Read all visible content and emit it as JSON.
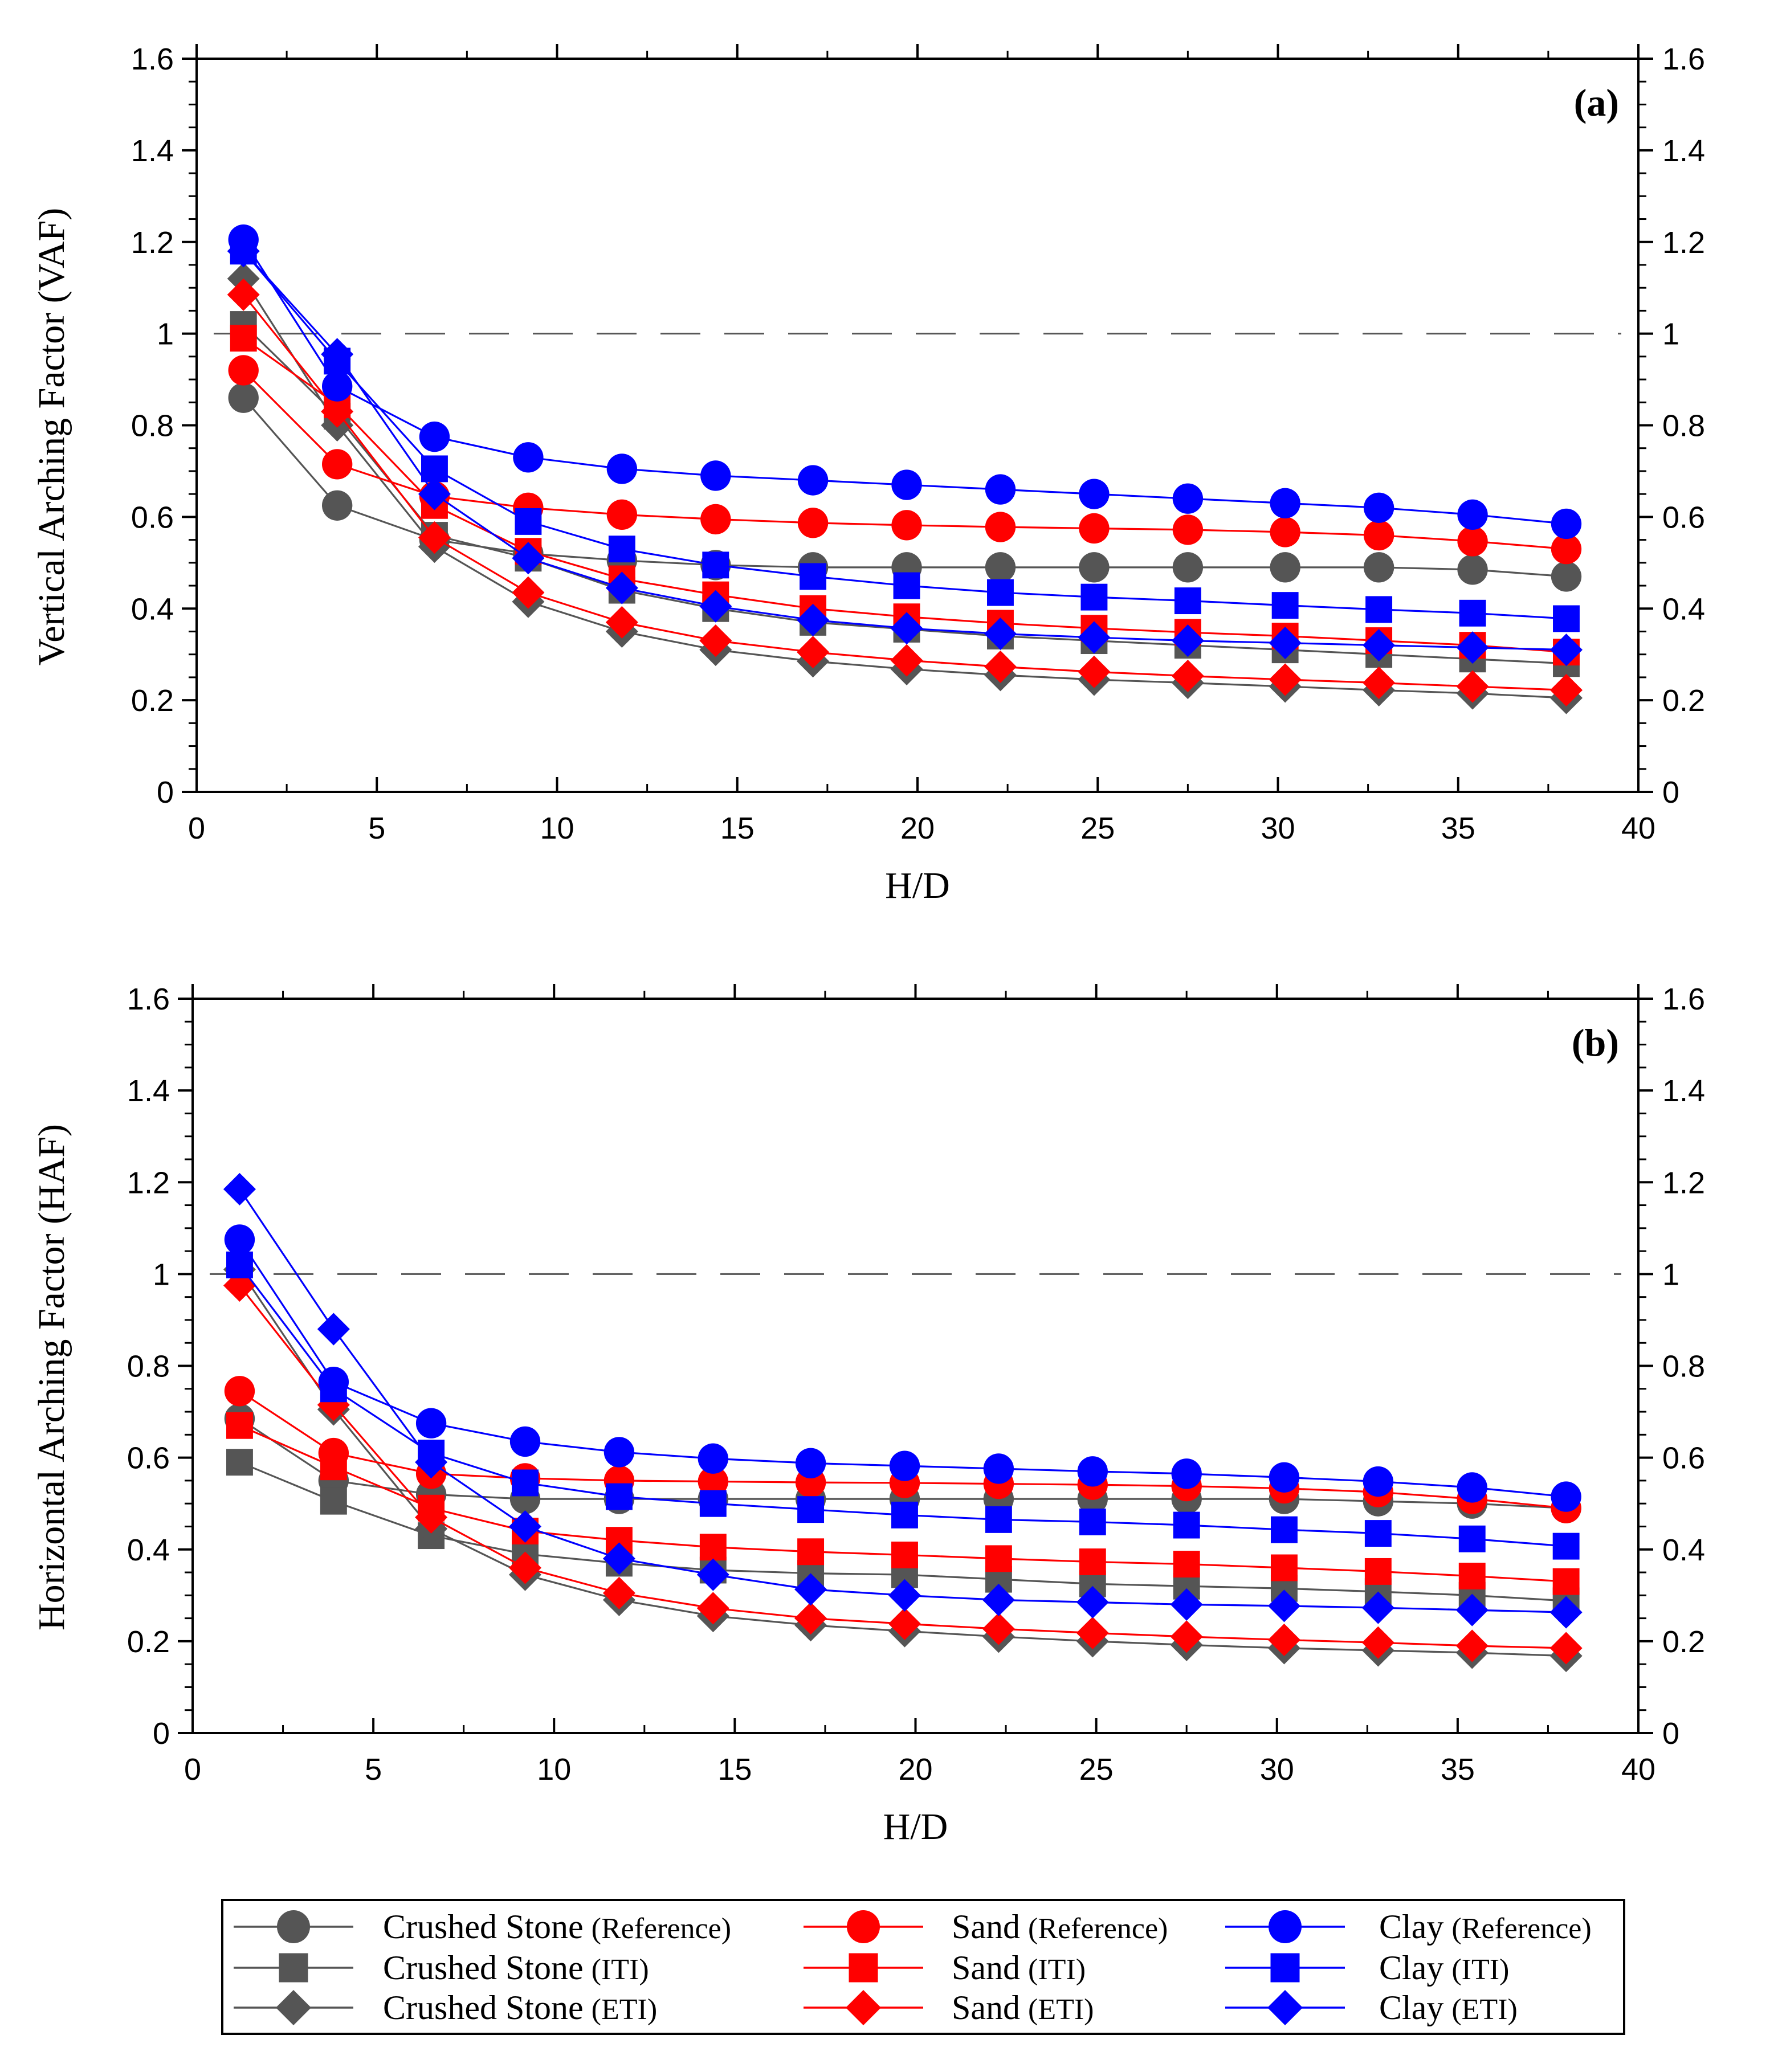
{
  "chart_data": [
    {
      "type": "line",
      "panel_label": "(a)",
      "xlabel": "H/D",
      "ylabel": "Vertical Arching Factor (VAF)",
      "xlim": [
        0,
        40
      ],
      "ylim": [
        0,
        1.6
      ],
      "xticks": [
        "0",
        "5",
        "10",
        "15",
        "20",
        "25",
        "30",
        "35",
        "40"
      ],
      "yticks": [
        "0",
        "0.2",
        "0.4",
        "0.6",
        "0.8",
        "1",
        "1.2",
        "1.4",
        "1.6"
      ],
      "reference_line": 1,
      "x": [
        1.3,
        3.9,
        6.6,
        9.2,
        11.8,
        14.4,
        17.1,
        19.7,
        22.3,
        24.9,
        27.5,
        30.2,
        32.8,
        35.4,
        38.0
      ],
      "series": [
        {
          "name": "Crushed Stone (Reference)",
          "values": [
            0.86,
            0.625,
            0.55,
            0.52,
            0.505,
            0.495,
            0.49,
            0.49,
            0.49,
            0.49,
            0.49,
            0.49,
            0.49,
            0.485,
            0.47
          ]
        },
        {
          "name": "Crushed Stone (ITI)",
          "values": [
            1.02,
            0.82,
            0.56,
            0.51,
            0.44,
            0.4,
            0.37,
            0.355,
            0.34,
            0.33,
            0.32,
            0.31,
            0.3,
            0.29,
            0.28
          ]
        },
        {
          "name": "Crushed Stone (ETI)",
          "values": [
            1.12,
            0.8,
            0.535,
            0.415,
            0.35,
            0.31,
            0.285,
            0.268,
            0.255,
            0.245,
            0.238,
            0.23,
            0.222,
            0.215,
            0.205
          ]
        },
        {
          "name": "Sand (Reference)",
          "values": [
            0.92,
            0.715,
            0.645,
            0.62,
            0.605,
            0.595,
            0.587,
            0.582,
            0.578,
            0.575,
            0.572,
            0.567,
            0.56,
            0.547,
            0.53
          ]
        },
        {
          "name": "Sand (ITI)",
          "values": [
            0.99,
            0.845,
            0.625,
            0.525,
            0.465,
            0.43,
            0.4,
            0.382,
            0.368,
            0.357,
            0.348,
            0.34,
            0.33,
            0.32,
            0.305
          ]
        },
        {
          "name": "Sand (ETI)",
          "values": [
            1.085,
            0.83,
            0.555,
            0.435,
            0.37,
            0.33,
            0.305,
            0.287,
            0.273,
            0.262,
            0.253,
            0.245,
            0.238,
            0.23,
            0.222
          ]
        },
        {
          "name": "Clay (Reference)",
          "values": [
            1.205,
            0.885,
            0.775,
            0.73,
            0.705,
            0.69,
            0.68,
            0.67,
            0.66,
            0.65,
            0.64,
            0.63,
            0.62,
            0.605,
            0.585
          ]
        },
        {
          "name": "Clay (ITI)",
          "values": [
            1.18,
            0.94,
            0.705,
            0.59,
            0.53,
            0.495,
            0.47,
            0.45,
            0.435,
            0.425,
            0.417,
            0.407,
            0.398,
            0.39,
            0.378
          ]
        },
        {
          "name": "Clay (ETI)",
          "values": [
            1.18,
            0.955,
            0.65,
            0.51,
            0.445,
            0.405,
            0.375,
            0.357,
            0.345,
            0.337,
            0.33,
            0.325,
            0.32,
            0.315,
            0.31
          ]
        }
      ]
    },
    {
      "type": "line",
      "panel_label": "(b)",
      "xlabel": "H/D",
      "ylabel": "Horizontal Arching Factor (HAF)",
      "xlim": [
        0,
        40
      ],
      "ylim": [
        0,
        1.6
      ],
      "xticks": [
        "0",
        "5",
        "10",
        "15",
        "20",
        "25",
        "30",
        "35",
        "40"
      ],
      "yticks": [
        "0",
        "0.2",
        "0.4",
        "0.6",
        "0.8",
        "1",
        "1.2",
        "1.4",
        "1.6"
      ],
      "reference_line": 1,
      "x": [
        1.3,
        3.9,
        6.6,
        9.2,
        11.8,
        14.4,
        17.1,
        19.7,
        22.3,
        24.9,
        27.5,
        30.2,
        32.8,
        35.4,
        38.0
      ],
      "series": [
        {
          "name": "Crushed Stone (Reference)",
          "values": [
            0.685,
            0.55,
            0.52,
            0.51,
            0.51,
            0.51,
            0.51,
            0.51,
            0.51,
            0.51,
            0.51,
            0.51,
            0.505,
            0.5,
            0.49
          ]
        },
        {
          "name": "Crushed Stone (ITI)",
          "values": [
            0.59,
            0.505,
            0.43,
            0.39,
            0.37,
            0.355,
            0.348,
            0.345,
            0.335,
            0.325,
            0.32,
            0.315,
            0.308,
            0.3,
            0.288
          ]
        },
        {
          "name": "Crushed Stone (ETI)",
          "values": [
            1.01,
            0.705,
            0.445,
            0.345,
            0.29,
            0.255,
            0.235,
            0.222,
            0.21,
            0.2,
            0.192,
            0.185,
            0.18,
            0.175,
            0.168
          ]
        },
        {
          "name": "Sand (Reference)",
          "values": [
            0.745,
            0.61,
            0.565,
            0.555,
            0.55,
            0.548,
            0.546,
            0.545,
            0.543,
            0.541,
            0.538,
            0.533,
            0.525,
            0.51,
            0.49
          ]
        },
        {
          "name": "Sand (ITI)",
          "values": [
            0.67,
            0.58,
            0.49,
            0.44,
            0.42,
            0.405,
            0.395,
            0.388,
            0.38,
            0.373,
            0.368,
            0.36,
            0.352,
            0.342,
            0.33
          ]
        },
        {
          "name": "Sand (ETI)",
          "values": [
            0.975,
            0.715,
            0.47,
            0.36,
            0.305,
            0.272,
            0.25,
            0.238,
            0.227,
            0.218,
            0.21,
            0.203,
            0.197,
            0.19,
            0.185
          ]
        },
        {
          "name": "Clay (Reference)",
          "values": [
            1.075,
            0.765,
            0.675,
            0.635,
            0.612,
            0.598,
            0.588,
            0.582,
            0.576,
            0.57,
            0.565,
            0.557,
            0.548,
            0.535,
            0.515
          ]
        },
        {
          "name": "Clay (ITI)",
          "values": [
            1.02,
            0.75,
            0.61,
            0.545,
            0.515,
            0.5,
            0.487,
            0.475,
            0.465,
            0.46,
            0.453,
            0.443,
            0.435,
            0.423,
            0.407
          ]
        },
        {
          "name": "Clay (ETI)",
          "values": [
            1.185,
            0.88,
            0.59,
            0.45,
            0.38,
            0.345,
            0.313,
            0.3,
            0.29,
            0.285,
            0.28,
            0.277,
            0.273,
            0.268,
            0.263
          ]
        }
      ]
    }
  ],
  "legend": [
    {
      "material": "Crushed Stone",
      "case": "(Reference)",
      "color": "#555555",
      "marker": "circle"
    },
    {
      "material": "Crushed Stone",
      "case": "(ITI)",
      "color": "#555555",
      "marker": "square"
    },
    {
      "material": "Crushed Stone",
      "case": "(ETI)",
      "color": "#555555",
      "marker": "diamond"
    },
    {
      "material": "Sand",
      "case": "(Reference)",
      "color": "#ff0000",
      "marker": "circle"
    },
    {
      "material": "Sand",
      "case": "(ITI)",
      "color": "#ff0000",
      "marker": "square"
    },
    {
      "material": "Sand",
      "case": "(ETI)",
      "color": "#ff0000",
      "marker": "diamond"
    },
    {
      "material": "Clay",
      "case": "(Reference)",
      "color": "#0000ff",
      "marker": "circle"
    },
    {
      "material": "Clay",
      "case": "(ITI)",
      "color": "#0000ff",
      "marker": "square"
    },
    {
      "material": "Clay",
      "case": "(ETI)",
      "color": "#0000ff",
      "marker": "diamond"
    }
  ],
  "series_colors": [
    "#555555",
    "#555555",
    "#555555",
    "#ff0000",
    "#ff0000",
    "#ff0000",
    "#0000ff",
    "#0000ff",
    "#0000ff"
  ],
  "series_markers": [
    "circle",
    "square",
    "diamond",
    "circle",
    "square",
    "diamond",
    "circle",
    "square",
    "diamond"
  ]
}
